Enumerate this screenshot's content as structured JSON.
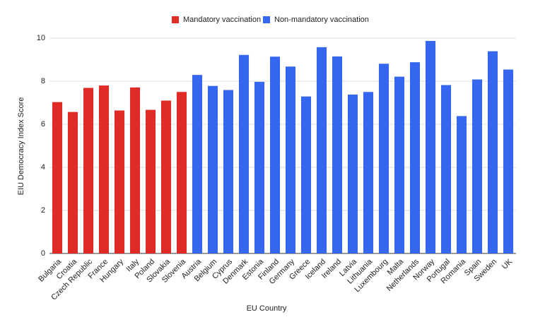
{
  "chart_data": {
    "type": "bar",
    "x_label": "EU Country",
    "y_label": "EIU Democracy Index Score",
    "categories": [
      "Bulgaria",
      "Croatia",
      "Czech Republic",
      "France",
      "Hungary",
      "Italy",
      "Poland",
      "Slovakia",
      "Slovenia",
      "Austria",
      "Belgium",
      "Cyprus",
      "Denmark",
      "Estonia",
      "Finland",
      "Germany",
      "Greece",
      "Iceland",
      "Ireland",
      "Latvia",
      "Lithuania",
      "Luxembourg",
      "Malta",
      "Netherlands",
      "Norway",
      "Portugal",
      "Romania",
      "Spain",
      "Sweden",
      "UK"
    ],
    "series": [
      {
        "name": "Mandatory vaccination",
        "color": "#e02b27",
        "values": [
          7.03,
          6.57,
          7.69,
          7.8,
          6.64,
          7.71,
          6.67,
          7.1,
          7.5,
          null,
          null,
          null,
          null,
          null,
          null,
          null,
          null,
          null,
          null,
          null,
          null,
          null,
          null,
          null,
          null,
          null,
          null,
          null,
          null,
          null
        ]
      },
      {
        "name": "Non-mandatory vaccination",
        "color": "#3466f0",
        "values": [
          null,
          null,
          null,
          null,
          null,
          null,
          null,
          null,
          null,
          8.29,
          7.78,
          7.59,
          9.22,
          7.97,
          9.14,
          8.68,
          7.29,
          9.58,
          9.15,
          7.38,
          7.5,
          8.81,
          8.21,
          8.88,
          9.87,
          7.82,
          6.38,
          8.08,
          9.39,
          8.54
        ]
      }
    ],
    "ylim": [
      0,
      10
    ],
    "yticks": [
      0,
      2,
      4,
      6,
      8,
      10
    ],
    "grid": true,
    "legend": "top"
  }
}
